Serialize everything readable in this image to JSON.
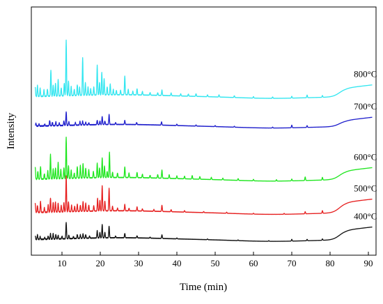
{
  "chart_data": {
    "type": "line",
    "title": "",
    "xlabel": "Time (min)",
    "ylabel": "Intensity",
    "xlim": [
      2,
      92
    ],
    "xticks": [
      10,
      20,
      30,
      40,
      50,
      60,
      70,
      80,
      90
    ],
    "grid": false,
    "series": [
      {
        "name": "800°C",
        "color": "#33E6F0",
        "baseline": 8.2,
        "peaks": [
          [
            3.0,
            0.55
          ],
          [
            3.6,
            0.6
          ],
          [
            4.3,
            0.45
          ],
          [
            5.3,
            0.35
          ],
          [
            6.2,
            0.4
          ],
          [
            7.1,
            1.45
          ],
          [
            7.7,
            0.6
          ],
          [
            8.3,
            0.7
          ],
          [
            9.0,
            0.9
          ],
          [
            9.8,
            0.45
          ],
          [
            10.6,
            0.7
          ],
          [
            11.1,
            3.1
          ],
          [
            11.7,
            0.8
          ],
          [
            12.4,
            0.5
          ],
          [
            13.2,
            0.35
          ],
          [
            14.0,
            0.6
          ],
          [
            14.6,
            0.45
          ],
          [
            15.4,
            2.1
          ],
          [
            16.1,
            0.7
          ],
          [
            16.8,
            0.45
          ],
          [
            17.5,
            0.35
          ],
          [
            18.3,
            0.45
          ],
          [
            19.2,
            1.65
          ],
          [
            19.8,
            0.7
          ],
          [
            20.4,
            1.25
          ],
          [
            21.0,
            0.9
          ],
          [
            21.8,
            0.45
          ],
          [
            22.6,
            0.6
          ],
          [
            23.4,
            0.3
          ],
          [
            24.2,
            0.25
          ],
          [
            25.3,
            0.25
          ],
          [
            26.4,
            1.05
          ],
          [
            27.3,
            0.3
          ],
          [
            28.5,
            0.2
          ],
          [
            29.6,
            0.35
          ],
          [
            31.0,
            0.2
          ],
          [
            33.0,
            0.15
          ],
          [
            35.0,
            0.15
          ],
          [
            36.1,
            0.3
          ],
          [
            38.5,
            0.15
          ],
          [
            41.0,
            0.12
          ],
          [
            43.0,
            0.12
          ],
          [
            45.0,
            0.15
          ],
          [
            48.0,
            0.1
          ],
          [
            51.0,
            0.12
          ],
          [
            55.0,
            0.1
          ],
          [
            60.0,
            0.08
          ],
          [
            65.0,
            0.08
          ],
          [
            70.0,
            0.1
          ],
          [
            74.0,
            0.15
          ],
          [
            78.0,
            0.1
          ]
        ],
        "tail_rise": 0.5
      },
      {
        "name": "700°C",
        "color": "#1F1FCC",
        "baseline": 6.55,
        "peaks": [
          [
            3.2,
            0.15
          ],
          [
            4.0,
            0.12
          ],
          [
            5.5,
            0.1
          ],
          [
            6.8,
            0.3
          ],
          [
            7.5,
            0.2
          ],
          [
            8.4,
            0.22
          ],
          [
            9.3,
            0.15
          ],
          [
            10.5,
            0.25
          ],
          [
            11.1,
            0.75
          ],
          [
            11.8,
            0.2
          ],
          [
            13.5,
            0.15
          ],
          [
            14.7,
            0.2
          ],
          [
            15.4,
            0.22
          ],
          [
            16.2,
            0.15
          ],
          [
            17.0,
            0.12
          ],
          [
            19.2,
            0.25
          ],
          [
            19.9,
            0.2
          ],
          [
            20.5,
            0.45
          ],
          [
            21.2,
            0.2
          ],
          [
            22.3,
            0.55
          ],
          [
            24.0,
            0.1
          ],
          [
            26.4,
            0.22
          ],
          [
            29.5,
            0.12
          ],
          [
            36.0,
            0.18
          ],
          [
            40.0,
            0.08
          ],
          [
            45.0,
            0.06
          ],
          [
            50.0,
            0.06
          ],
          [
            55.0,
            0.05
          ],
          [
            65.0,
            0.05
          ],
          [
            70.0,
            0.15
          ],
          [
            74.0,
            0.1
          ]
        ],
        "tail_rise": 0.35
      },
      {
        "name": "600°C",
        "color": "#1FE61F",
        "baseline": 3.6,
        "peaks": [
          [
            3.0,
            0.7
          ],
          [
            3.7,
            0.45
          ],
          [
            4.4,
            0.7
          ],
          [
            5.4,
            0.3
          ],
          [
            6.3,
            0.45
          ],
          [
            7.0,
            1.35
          ],
          [
            7.7,
            0.55
          ],
          [
            8.3,
            0.6
          ],
          [
            9.0,
            0.9
          ],
          [
            9.7,
            0.5
          ],
          [
            10.5,
            0.6
          ],
          [
            11.1,
            2.3
          ],
          [
            11.7,
            0.7
          ],
          [
            12.4,
            0.45
          ],
          [
            13.2,
            0.3
          ],
          [
            14.0,
            0.65
          ],
          [
            14.8,
            0.7
          ],
          [
            15.5,
            0.8
          ],
          [
            16.2,
            0.55
          ],
          [
            17.0,
            0.45
          ],
          [
            18.2,
            0.35
          ],
          [
            19.2,
            0.8
          ],
          [
            19.8,
            0.55
          ],
          [
            20.5,
            1.1
          ],
          [
            21.1,
            0.65
          ],
          [
            21.8,
            0.35
          ],
          [
            22.4,
            1.4
          ],
          [
            23.2,
            0.3
          ],
          [
            24.5,
            0.25
          ],
          [
            26.4,
            0.6
          ],
          [
            27.5,
            0.25
          ],
          [
            29.6,
            0.3
          ],
          [
            31.0,
            0.2
          ],
          [
            33.0,
            0.15
          ],
          [
            35.0,
            0.2
          ],
          [
            36.1,
            0.45
          ],
          [
            38.0,
            0.2
          ],
          [
            40.0,
            0.15
          ],
          [
            42.0,
            0.15
          ],
          [
            44.0,
            0.2
          ],
          [
            46.0,
            0.15
          ],
          [
            49.0,
            0.12
          ],
          [
            52.0,
            0.1
          ],
          [
            56.0,
            0.1
          ],
          [
            60.0,
            0.08
          ],
          [
            66.0,
            0.08
          ],
          [
            70.0,
            0.1
          ],
          [
            73.5,
            0.2
          ],
          [
            78.0,
            0.15
          ]
        ],
        "tail_rise": 0.5
      },
      {
        "name": "500°C",
        "color": "#E61F1F",
        "baseline": 1.75,
        "peaks": [
          [
            3.0,
            0.5
          ],
          [
            3.6,
            0.4
          ],
          [
            4.4,
            0.6
          ],
          [
            5.4,
            0.25
          ],
          [
            6.4,
            0.4
          ],
          [
            7.0,
            0.8
          ],
          [
            7.7,
            0.55
          ],
          [
            8.3,
            0.55
          ],
          [
            9.0,
            0.5
          ],
          [
            9.8,
            0.35
          ],
          [
            10.5,
            0.5
          ],
          [
            11.1,
            2.0
          ],
          [
            11.7,
            0.55
          ],
          [
            12.5,
            0.35
          ],
          [
            13.3,
            0.3
          ],
          [
            14.0,
            0.4
          ],
          [
            14.8,
            0.35
          ],
          [
            15.5,
            0.55
          ],
          [
            16.2,
            0.45
          ],
          [
            17.0,
            0.35
          ],
          [
            18.3,
            0.3
          ],
          [
            19.3,
            0.7
          ],
          [
            19.9,
            0.6
          ],
          [
            20.5,
            1.4
          ],
          [
            21.2,
            0.55
          ],
          [
            22.3,
            1.25
          ],
          [
            23.2,
            0.25
          ],
          [
            24.5,
            0.15
          ],
          [
            26.4,
            0.35
          ],
          [
            27.5,
            0.15
          ],
          [
            29.6,
            0.22
          ],
          [
            31.0,
            0.12
          ],
          [
            34.0,
            0.1
          ],
          [
            36.1,
            0.35
          ],
          [
            38.5,
            0.12
          ],
          [
            42.0,
            0.08
          ],
          [
            47.0,
            0.06
          ],
          [
            53.0,
            0.06
          ],
          [
            60.0,
            0.05
          ],
          [
            68.0,
            0.05
          ],
          [
            73.5,
            0.12
          ],
          [
            78.0,
            0.15
          ]
        ],
        "tail_rise": 0.6
      },
      {
        "name": "400°C",
        "color": "#111111",
        "baseline": 0.25,
        "peaks": [
          [
            3.0,
            0.22
          ],
          [
            3.6,
            0.25
          ],
          [
            4.3,
            0.15
          ],
          [
            5.5,
            0.1
          ],
          [
            6.4,
            0.18
          ],
          [
            7.0,
            0.3
          ],
          [
            7.7,
            0.3
          ],
          [
            8.4,
            0.25
          ],
          [
            9.0,
            0.2
          ],
          [
            10.0,
            0.15
          ],
          [
            11.1,
            0.9
          ],
          [
            11.8,
            0.2
          ],
          [
            13.0,
            0.12
          ],
          [
            14.0,
            0.22
          ],
          [
            14.8,
            0.2
          ],
          [
            15.5,
            0.25
          ],
          [
            16.2,
            0.2
          ],
          [
            17.2,
            0.12
          ],
          [
            19.2,
            0.4
          ],
          [
            19.9,
            0.3
          ],
          [
            20.5,
            0.75
          ],
          [
            21.2,
            0.3
          ],
          [
            22.3,
            0.65
          ],
          [
            24.0,
            0.1
          ],
          [
            26.4,
            0.25
          ],
          [
            29.6,
            0.12
          ],
          [
            33.0,
            0.06
          ],
          [
            36.1,
            0.2
          ],
          [
            40.0,
            0.05
          ],
          [
            48.0,
            0.04
          ],
          [
            56.0,
            0.04
          ],
          [
            64.0,
            0.04
          ],
          [
            70.0,
            0.1
          ],
          [
            74.0,
            0.08
          ],
          [
            78.0,
            0.08
          ]
        ],
        "tail_rise": 0.55
      }
    ]
  }
}
